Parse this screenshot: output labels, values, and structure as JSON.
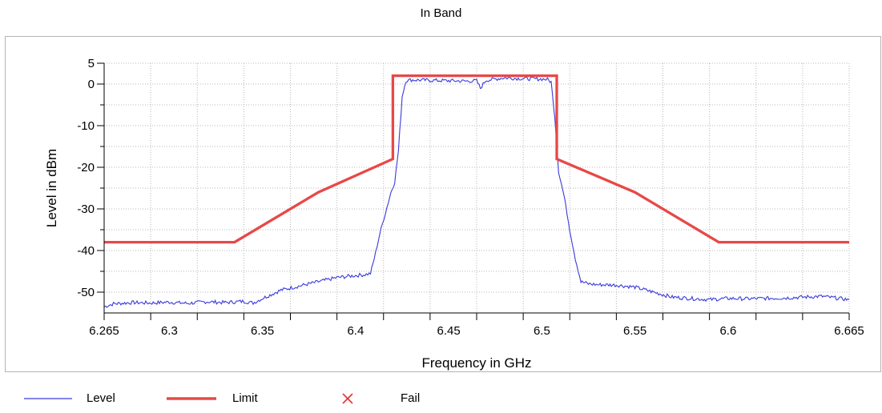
{
  "chart_data": {
    "type": "line",
    "title": "In Band",
    "xlabel": "Frequency in GHz",
    "ylabel": "Level in dBm",
    "xlim": [
      6.265,
      6.665
    ],
    "ylim": [
      -55,
      5
    ],
    "x_ticks": [
      "6.265",
      "6.3",
      "6.35",
      "6.4",
      "6.45",
      "6.5",
      "6.55",
      "6.6",
      "6.665"
    ],
    "y_ticks": [
      "5",
      "0",
      "-10",
      "-20",
      "-30",
      "-40",
      "-50"
    ],
    "grid": true,
    "legend_position": "bottom",
    "series": [
      {
        "name": "Level",
        "color": "#3a3adb",
        "x": [
          6.265,
          6.27,
          6.28,
          6.29,
          6.3,
          6.31,
          6.32,
          6.33,
          6.34,
          6.345,
          6.35,
          6.36,
          6.37,
          6.38,
          6.39,
          6.4,
          6.405,
          6.408,
          6.41,
          6.413,
          6.416,
          6.419,
          6.421,
          6.423,
          6.425,
          6.427,
          6.43,
          6.44,
          6.45,
          6.46,
          6.465,
          6.467,
          6.47,
          6.48,
          6.49,
          6.5,
          6.503,
          6.505,
          6.507,
          6.509,
          6.512,
          6.515,
          6.518,
          6.521,
          6.525,
          6.53,
          6.54,
          6.55,
          6.56,
          6.57,
          6.58,
          6.59,
          6.6,
          6.61,
          6.62,
          6.63,
          6.64,
          6.65,
          6.665
        ],
        "y": [
          -53.5,
          -52.8,
          -52.5,
          -52.6,
          -52.4,
          -52.7,
          -52.3,
          -52.5,
          -52.2,
          -52.6,
          -51.5,
          -49.5,
          -48.5,
          -47.5,
          -46.5,
          -46.0,
          -45.8,
          -45.5,
          -42.0,
          -36.0,
          -31.0,
          -26.0,
          -23.5,
          -16.0,
          -3.0,
          0.8,
          1.0,
          0.9,
          0.8,
          0.7,
          0.8,
          -1.0,
          0.9,
          1.5,
          1.3,
          1.2,
          1.1,
          0.5,
          -8.0,
          -21.0,
          -27.0,
          -35.0,
          -42.0,
          -47.5,
          -48.0,
          -48.2,
          -48.3,
          -48.8,
          -50.0,
          -51.2,
          -51.5,
          -51.8,
          -51.5,
          -51.6,
          -51.5,
          -51.4,
          -51.2,
          -51.0,
          -51.8
        ]
      },
      {
        "name": "Limit",
        "color": "#e84848",
        "x": [
          6.265,
          6.335,
          6.38,
          6.42,
          6.42,
          6.508,
          6.508,
          6.55,
          6.595,
          6.665
        ],
        "y": [
          -38,
          -38,
          -26,
          -18,
          2,
          2,
          -18,
          -26,
          -38,
          -38
        ]
      }
    ],
    "legend": [
      {
        "name": "Level",
        "marker": "line",
        "color": "#3a3adb"
      },
      {
        "name": "Limit",
        "marker": "thick-line",
        "color": "#e84848"
      },
      {
        "name": "Fail",
        "marker": "cross",
        "color": "#e83030"
      }
    ]
  }
}
